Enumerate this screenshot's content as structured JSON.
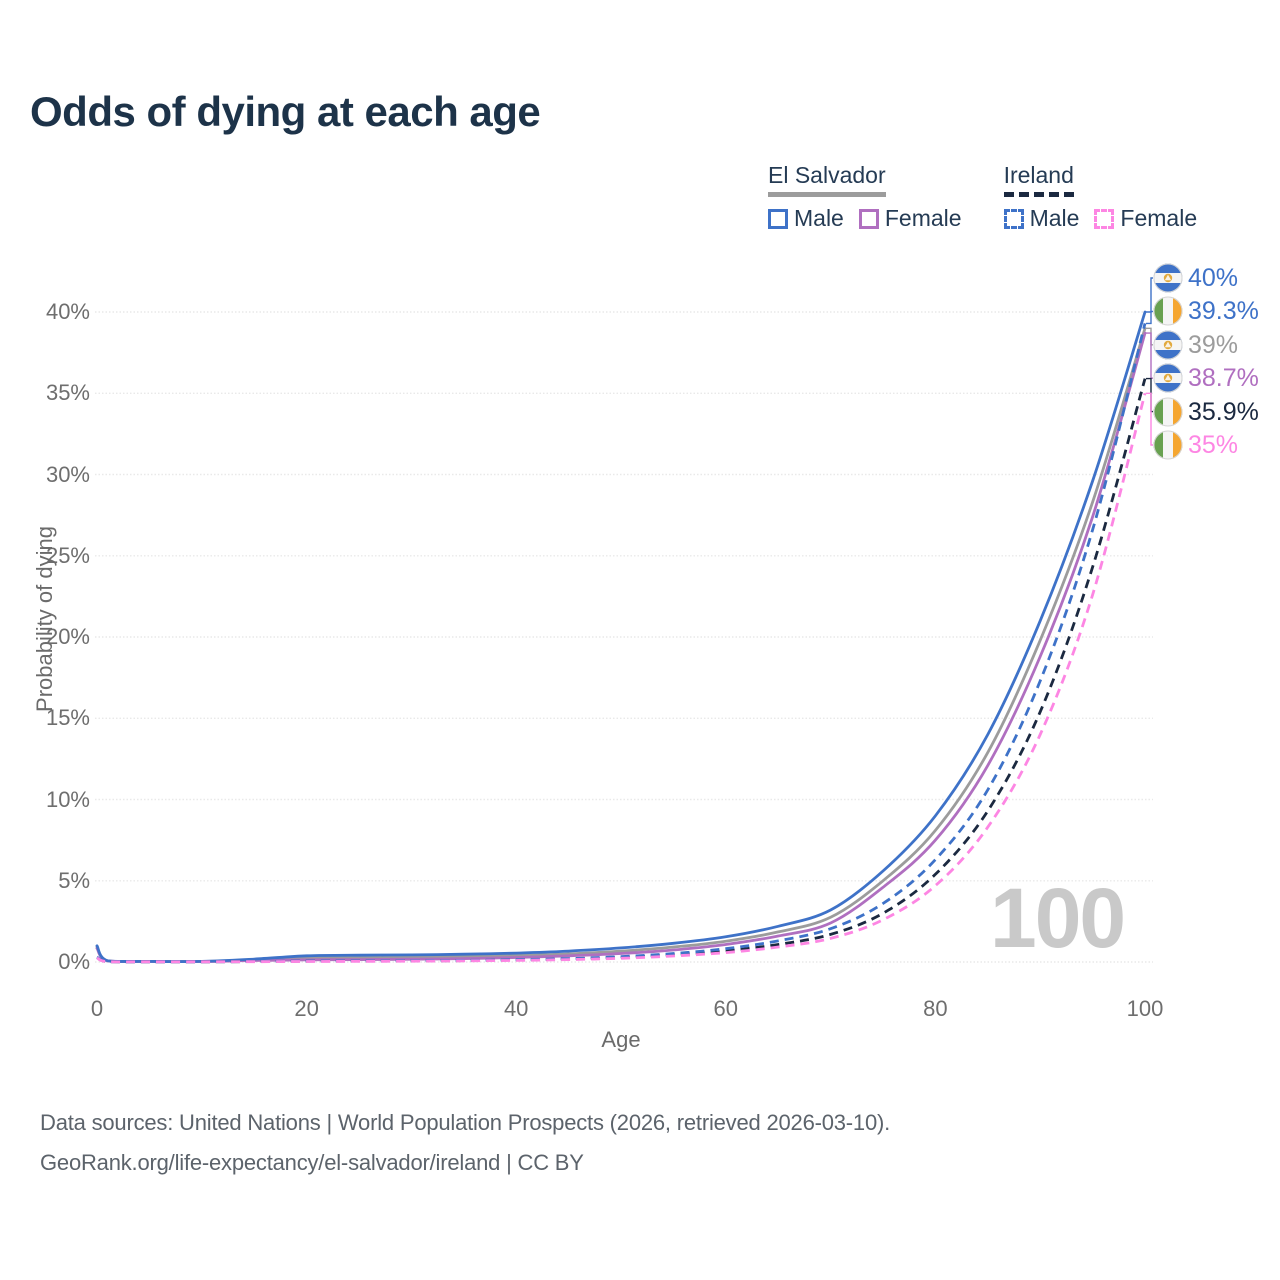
{
  "title": "Odds of dying at each age",
  "legend": {
    "groups": [
      {
        "name": "El Salvador",
        "line_style": "solid",
        "underline_color": "#9c9c9c",
        "items": [
          {
            "label": "Male",
            "color": "#3e72c8",
            "style": "solid"
          },
          {
            "label": "Female",
            "color": "#b06fc0",
            "style": "solid"
          }
        ]
      },
      {
        "name": "Ireland",
        "line_style": "dashed",
        "underline_color": "#1b2940",
        "items": [
          {
            "label": "Male",
            "color": "#3e72c8",
            "style": "dashed"
          },
          {
            "label": "Female",
            "color": "#fd86e3",
            "style": "dashed"
          }
        ]
      }
    ]
  },
  "chart_data": {
    "type": "line",
    "title": "Odds of dying at each age",
    "xlabel": "Age",
    "ylabel": "Probability of dying",
    "xlim": [
      0,
      100
    ],
    "ylim": [
      0,
      40
    ],
    "grid": "horizontal",
    "x_ticks": [
      {
        "v": 0,
        "label": "0"
      },
      {
        "v": 20,
        "label": "20"
      },
      {
        "v": 40,
        "label": "40"
      },
      {
        "v": 60,
        "label": "60"
      },
      {
        "v": 80,
        "label": "80"
      },
      {
        "v": 100,
        "label": "100"
      }
    ],
    "y_ticks": [
      {
        "v": 0,
        "label": "0%"
      },
      {
        "v": 5,
        "label": "5%"
      },
      {
        "v": 10,
        "label": "10%"
      },
      {
        "v": 15,
        "label": "15%"
      },
      {
        "v": 20,
        "label": "20%"
      },
      {
        "v": 25,
        "label": "25%"
      },
      {
        "v": 30,
        "label": "30%"
      },
      {
        "v": 35,
        "label": "35%"
      },
      {
        "v": 40,
        "label": "40%"
      }
    ],
    "x": [
      0,
      1,
      5,
      10,
      15,
      20,
      25,
      30,
      35,
      40,
      45,
      50,
      55,
      60,
      65,
      70,
      75,
      80,
      85,
      90,
      95,
      100
    ],
    "series": [
      {
        "name": "El Salvador — Both sexes",
        "country": "el-salvador",
        "sex": "both",
        "color": "#9c9c9c",
        "dash": "solid",
        "values": [
          0.92,
          0.07,
          0.035,
          0.035,
          0.13,
          0.25,
          0.28,
          0.3,
          0.34,
          0.4,
          0.5,
          0.67,
          0.92,
          1.28,
          1.85,
          2.75,
          5.0,
          8.1,
          12.9,
          19.8,
          28.3,
          39.0
        ]
      },
      {
        "name": "El Salvador — Female",
        "country": "el-salvador",
        "sex": "female",
        "color": "#b06fc0",
        "dash": "solid",
        "values": [
          0.84,
          0.065,
          0.03,
          0.03,
          0.09,
          0.13,
          0.15,
          0.17,
          0.21,
          0.28,
          0.38,
          0.52,
          0.74,
          1.08,
          1.6,
          2.4,
          4.6,
          7.5,
          12.1,
          18.8,
          27.4,
          38.7
        ]
      },
      {
        "name": "El Salvador — Male",
        "country": "el-salvador",
        "sex": "male",
        "color": "#3e72c8",
        "dash": "solid",
        "values": [
          1.0,
          0.08,
          0.04,
          0.04,
          0.18,
          0.38,
          0.42,
          0.44,
          0.48,
          0.55,
          0.67,
          0.87,
          1.15,
          1.55,
          2.2,
          3.2,
          5.6,
          9.0,
          14.0,
          21.0,
          29.6,
          40.0
        ]
      },
      {
        "name": "Ireland — Both sexes",
        "country": "ireland",
        "sex": "both",
        "color": "#1b2940",
        "dash": "dashed",
        "values": [
          0.28,
          0.02,
          0.01,
          0.01,
          0.025,
          0.05,
          0.055,
          0.065,
          0.085,
          0.12,
          0.18,
          0.28,
          0.44,
          0.69,
          1.08,
          1.7,
          3.0,
          5.4,
          9.3,
          15.4,
          24.3,
          35.9
        ]
      },
      {
        "name": "Ireland — Male",
        "country": "ireland",
        "sex": "male",
        "color": "#3e72c8",
        "dash": "dashed",
        "values": [
          0.3,
          0.02,
          0.01,
          0.01,
          0.03,
          0.06,
          0.07,
          0.08,
          0.1,
          0.14,
          0.21,
          0.33,
          0.52,
          0.82,
          1.3,
          2.05,
          3.6,
          6.3,
          10.6,
          17.3,
          26.6,
          39.3
        ]
      },
      {
        "name": "Ireland — Female",
        "country": "ireland",
        "sex": "female",
        "color": "#fd86e3",
        "dash": "dashed",
        "values": [
          0.25,
          0.02,
          0.01,
          0.01,
          0.02,
          0.03,
          0.04,
          0.05,
          0.07,
          0.1,
          0.15,
          0.23,
          0.37,
          0.58,
          0.92,
          1.45,
          2.6,
          4.7,
          8.3,
          14.0,
          22.6,
          35.0
        ]
      }
    ]
  },
  "end_labels": [
    {
      "text": "40%",
      "value": 40.0,
      "country": "el-salvador",
      "color": "#3e72c8"
    },
    {
      "text": "39.3%",
      "value": 39.3,
      "country": "ireland",
      "color": "#3e72c8"
    },
    {
      "text": "39%",
      "value": 39.0,
      "country": "el-salvador",
      "color": "#9c9c9c"
    },
    {
      "text": "38.7%",
      "value": 38.7,
      "country": "el-salvador",
      "color": "#b06fc0"
    },
    {
      "text": "35.9%",
      "value": 35.9,
      "country": "ireland",
      "color": "#1b2940"
    },
    {
      "text": "35%",
      "value": 35.0,
      "country": "ireland",
      "color": "#fd86e3"
    }
  ],
  "watermark": "100",
  "footer": {
    "line1": "Data sources: United Nations | World Population Prospects (2026, retrieved 2026-03-10).",
    "line2": "GeoRank.org/life-expectancy/el-salvador/ireland | CC BY"
  },
  "colors": {
    "title": "#1d3349",
    "legend_text": "#253b54",
    "grid": "#e9e9e9",
    "tick_text": "#6e6e6e",
    "watermark": "#c9c9c9",
    "footer_text": "#5c636b",
    "flag_el_salvador": [
      "#3e72c8",
      "#f5f5f5",
      "#e2aa3f"
    ],
    "flag_ireland": [
      "#68a150",
      "#f5f5f5",
      "#f5a630"
    ]
  }
}
